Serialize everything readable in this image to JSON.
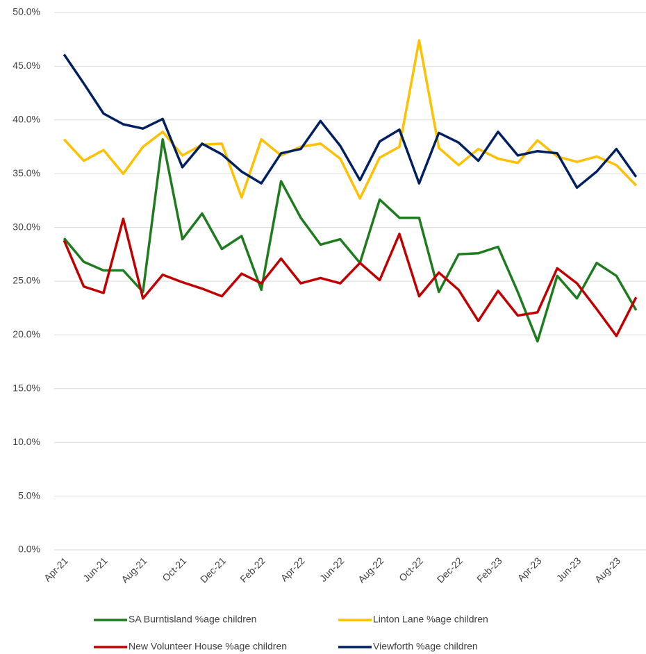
{
  "chart_data": {
    "type": "line",
    "categories": [
      "Apr-21",
      null,
      "Jun-21",
      null,
      "Aug-21",
      null,
      "Oct-21",
      null,
      "Dec-21",
      null,
      "Feb-22",
      null,
      "Apr-22",
      null,
      "Jun-22",
      null,
      "Aug-22",
      null,
      "Oct-22",
      null,
      "Dec-22",
      null,
      "Feb-23",
      null,
      "Apr-23",
      null,
      "Jun-23",
      null,
      "Aug-23",
      null
    ],
    "series": [
      {
        "name": "SA Burntisland %age children",
        "color": "#1e7b1e",
        "values": [
          29.0,
          26.8,
          26.0,
          26.0,
          24.0,
          38.2,
          28.9,
          31.3,
          28.0,
          29.2,
          24.2,
          34.3,
          30.9,
          28.4,
          28.9,
          26.7,
          32.6,
          30.9,
          30.9,
          24.0,
          27.5,
          27.6,
          28.2,
          24.0,
          19.4,
          25.5,
          23.4,
          26.7,
          25.5,
          22.3
        ]
      },
      {
        "name": "Linton Lane %age children",
        "color": "#ffc000",
        "values": [
          38.2,
          36.2,
          37.2,
          35.0,
          37.5,
          38.9,
          36.7,
          37.7,
          37.8,
          32.8,
          38.2,
          36.7,
          37.5,
          37.8,
          36.4,
          32.7,
          36.5,
          37.5,
          47.4,
          37.4,
          35.8,
          37.3,
          36.4,
          36.0,
          38.1,
          36.6,
          36.1,
          36.6,
          35.8,
          33.9
        ]
      },
      {
        "name": "New Volunteer House %age children",
        "color": "#c00000",
        "values": [
          28.8,
          24.5,
          23.9,
          30.8,
          23.4,
          25.6,
          24.9,
          24.3,
          23.6,
          25.7,
          24.8,
          27.1,
          24.8,
          25.3,
          24.8,
          26.7,
          25.1,
          29.4,
          23.6,
          25.8,
          24.2,
          21.3,
          24.1,
          21.8,
          22.1,
          26.2,
          24.8,
          22.4,
          19.9,
          23.5
        ]
      },
      {
        "name": "Viewforth %age children",
        "color": "#002060",
        "values": [
          46.1,
          43.4,
          40.6,
          39.6,
          39.2,
          40.1,
          35.6,
          37.8,
          36.8,
          35.2,
          34.1,
          36.9,
          37.3,
          39.9,
          37.6,
          34.4,
          38.0,
          39.1,
          34.1,
          38.8,
          37.9,
          36.2,
          38.9,
          36.7,
          37.1,
          36.9,
          33.7,
          35.2,
          37.3,
          34.7
        ]
      }
    ],
    "ylim": [
      0,
      50
    ],
    "yticks": [
      {
        "value": 0,
        "label": "0.0%"
      },
      {
        "value": 5,
        "label": "5.0%"
      },
      {
        "value": 10,
        "label": "10.0%"
      },
      {
        "value": 15,
        "label": "15.0%"
      },
      {
        "value": 20,
        "label": "20.0%"
      },
      {
        "value": 25,
        "label": "25.0%"
      },
      {
        "value": 30,
        "label": "30.0%"
      },
      {
        "value": 35,
        "label": "35.0%"
      },
      {
        "value": 40,
        "label": "40.0%"
      },
      {
        "value": 45,
        "label": "45.0%"
      },
      {
        "value": 50,
        "label": "50.0%"
      }
    ],
    "grid": true
  }
}
